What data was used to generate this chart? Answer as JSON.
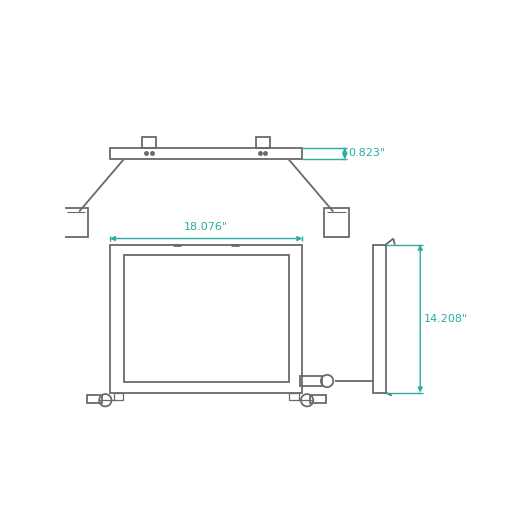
{
  "bg_color": "#ffffff",
  "line_color": "#6a6a6a",
  "dim_color": "#2aada0",
  "dim_width_label": "18.076\"",
  "dim_depth_label": "0.823\"",
  "dim_height_label": "14.208\"",
  "fig_width": 5.12,
  "fig_height": 5.12,
  "dpi": 100
}
